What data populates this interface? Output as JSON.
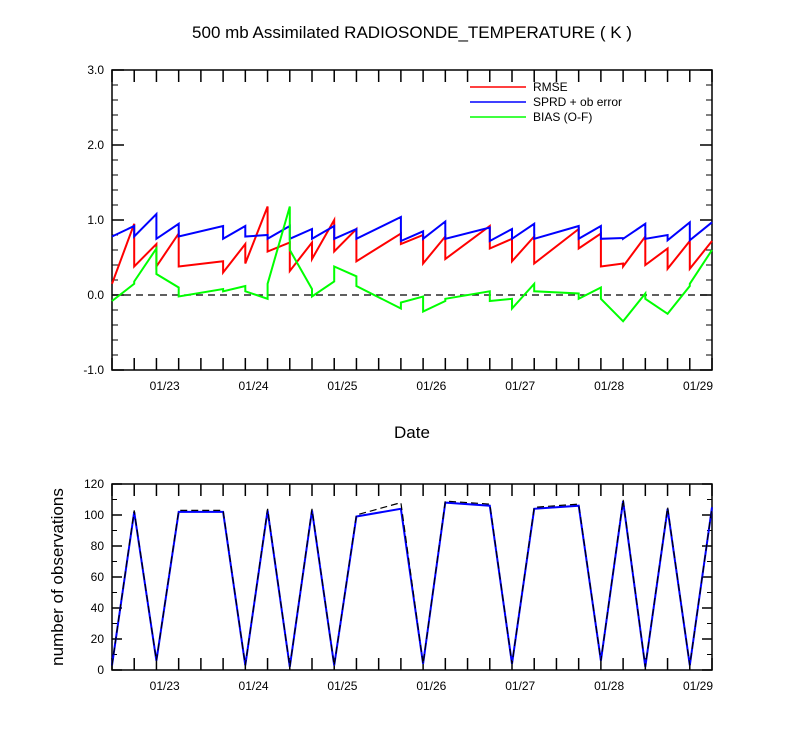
{
  "chart_data": [
    {
      "type": "line",
      "title": "500 mb Assimilated RADIOSONDE_TEMPERATURE ( K )",
      "xlabel": "Date",
      "ylabel": "",
      "ylim": [
        -1.0,
        3.0
      ],
      "yticks": [
        "-1.0",
        "0.0",
        "1.0",
        "2.0",
        "3.0"
      ],
      "xlim": [
        0,
        6.75
      ],
      "xticks": [
        {
          "x": 0.75,
          "label": "01/23"
        },
        {
          "x": 1.75,
          "label": "01/24"
        },
        {
          "x": 2.75,
          "label": "01/25"
        },
        {
          "x": 3.75,
          "label": "01/26"
        },
        {
          "x": 4.75,
          "label": "01/27"
        },
        {
          "x": 5.75,
          "label": "01/28"
        },
        {
          "x": 6.75,
          "label": "01/29"
        }
      ],
      "reference_line": {
        "y": 0.0,
        "style": "dashed"
      },
      "legend": {
        "position": "top-right"
      },
      "series": [
        {
          "name": "RMSE",
          "color": "#ff0000",
          "x": [
            0,
            0.25,
            0.25,
            0.5,
            0.5,
            0.75,
            0.75,
            1.25,
            1.25,
            1.5,
            1.5,
            1.75,
            1.75,
            2.0,
            2.0,
            2.25,
            2.25,
            2.5,
            2.5,
            2.75,
            2.75,
            3.25,
            3.25,
            3.5,
            3.5,
            3.75,
            3.75,
            4.25,
            4.25,
            4.5,
            4.5,
            4.75,
            4.75,
            5.25,
            5.25,
            5.5,
            5.5,
            5.75,
            5.75,
            6.0,
            6.0,
            6.25,
            6.25,
            6.5,
            6.5,
            6.75
          ],
          "y": [
            0.15,
            0.95,
            0.38,
            0.68,
            0.38,
            0.82,
            0.38,
            0.45,
            0.3,
            0.68,
            0.42,
            1.18,
            0.58,
            0.7,
            0.32,
            0.7,
            0.48,
            1.0,
            0.58,
            0.88,
            0.45,
            0.82,
            0.68,
            0.8,
            0.42,
            0.78,
            0.48,
            0.92,
            0.62,
            0.75,
            0.45,
            0.78,
            0.42,
            0.88,
            0.62,
            0.82,
            0.38,
            0.42,
            0.38,
            0.78,
            0.4,
            0.62,
            0.35,
            0.72,
            0.35,
            0.72
          ]
        },
        {
          "name": "SPRD + ob error",
          "color": "#0000ff",
          "x": [
            0,
            0.25,
            0.25,
            0.5,
            0.5,
            0.75,
            0.75,
            1.25,
            1.25,
            1.5,
            1.5,
            1.75,
            1.75,
            2.0,
            2.0,
            2.25,
            2.25,
            2.5,
            2.5,
            2.75,
            2.75,
            3.25,
            3.25,
            3.5,
            3.5,
            3.75,
            3.75,
            4.25,
            4.25,
            4.5,
            4.5,
            4.75,
            4.75,
            5.25,
            5.25,
            5.5,
            5.5,
            5.75,
            5.75,
            6.0,
            6.0,
            6.25,
            6.25,
            6.5,
            6.5,
            6.75
          ],
          "y": [
            0.78,
            0.92,
            0.78,
            1.08,
            0.75,
            0.95,
            0.78,
            0.92,
            0.75,
            0.92,
            0.78,
            0.8,
            0.75,
            0.92,
            0.75,
            0.88,
            0.75,
            0.92,
            0.75,
            0.88,
            0.75,
            1.04,
            0.72,
            0.85,
            0.75,
            0.98,
            0.75,
            0.9,
            0.72,
            0.88,
            0.75,
            0.95,
            0.75,
            0.92,
            0.75,
            0.92,
            0.75,
            0.76,
            0.75,
            0.95,
            0.75,
            0.8,
            0.73,
            0.97,
            0.73,
            0.97
          ]
        },
        {
          "name": "BIAS (O-F)",
          "color": "#00ff00",
          "x": [
            0,
            0.25,
            0.25,
            0.5,
            0.5,
            0.75,
            0.75,
            1.25,
            1.25,
            1.5,
            1.5,
            1.75,
            1.75,
            2.0,
            2.0,
            2.25,
            2.25,
            2.5,
            2.5,
            2.75,
            2.75,
            3.25,
            3.25,
            3.5,
            3.5,
            3.75,
            3.75,
            4.25,
            4.25,
            4.5,
            4.5,
            4.75,
            4.75,
            5.25,
            5.25,
            5.5,
            5.5,
            5.75,
            5.75,
            6.0,
            6.0,
            6.25,
            6.25,
            6.5,
            6.5,
            6.75
          ],
          "y": [
            -0.08,
            0.15,
            0.18,
            0.62,
            0.28,
            0.1,
            -0.02,
            0.08,
            0.05,
            0.12,
            0.05,
            -0.05,
            0.15,
            1.18,
            0.6,
            0.08,
            -0.02,
            0.18,
            0.38,
            0.25,
            0.12,
            -0.18,
            -0.1,
            -0.02,
            -0.22,
            -0.08,
            -0.05,
            0.05,
            -0.08,
            -0.05,
            -0.18,
            0.15,
            0.05,
            0.02,
            -0.05,
            0.1,
            -0.05,
            -0.35,
            -0.35,
            0.02,
            -0.05,
            -0.25,
            -0.25,
            0.12,
            0.15,
            0.6
          ]
        }
      ]
    },
    {
      "type": "line",
      "title": "",
      "xlabel": "",
      "ylabel": "number of observations",
      "ylim": [
        0,
        120
      ],
      "yticks": [
        "0",
        "20",
        "40",
        "60",
        "80",
        "100",
        "120"
      ],
      "xlim": [
        0,
        6.75
      ],
      "xticks": [
        {
          "x": 0.75,
          "label": "01/23"
        },
        {
          "x": 1.75,
          "label": "01/24"
        },
        {
          "x": 2.75,
          "label": "01/25"
        },
        {
          "x": 3.75,
          "label": "01/26"
        },
        {
          "x": 4.75,
          "label": "01/27"
        },
        {
          "x": 5.75,
          "label": "01/28"
        },
        {
          "x": 6.75,
          "label": "01/29"
        }
      ],
      "series": [
        {
          "color": "#0000ff",
          "style": "solid",
          "x": [
            0,
            0.25,
            0.5,
            0.75,
            1.25,
            1.5,
            1.75,
            2.0,
            2.25,
            2.5,
            2.75,
            3.25,
            3.5,
            3.75,
            4.25,
            4.5,
            4.75,
            5.25,
            5.5,
            5.75,
            6.0,
            6.25,
            6.5,
            6.75
          ],
          "y": [
            3,
            102,
            6,
            102,
            102,
            3,
            103,
            2,
            103,
            3,
            99,
            104,
            4,
            108,
            106,
            4,
            104,
            106,
            6,
            109,
            2,
            104,
            3,
            105
          ]
        },
        {
          "color": "#000000",
          "style": "dashed",
          "x": [
            0,
            0.25,
            0.5,
            0.75,
            1.25,
            1.5,
            1.75,
            2.0,
            2.25,
            2.5,
            2.75,
            3.25,
            3.5,
            3.75,
            4.25,
            4.5,
            4.75,
            5.25,
            5.5,
            5.75,
            6.0,
            6.25,
            6.5,
            6.75
          ],
          "y": [
            3,
            103,
            6,
            103,
            103,
            3,
            104,
            2,
            104,
            3,
            100,
            108,
            4,
            109,
            107,
            4,
            105,
            107,
            6,
            110,
            2,
            105,
            3,
            105
          ]
        }
      ]
    }
  ]
}
